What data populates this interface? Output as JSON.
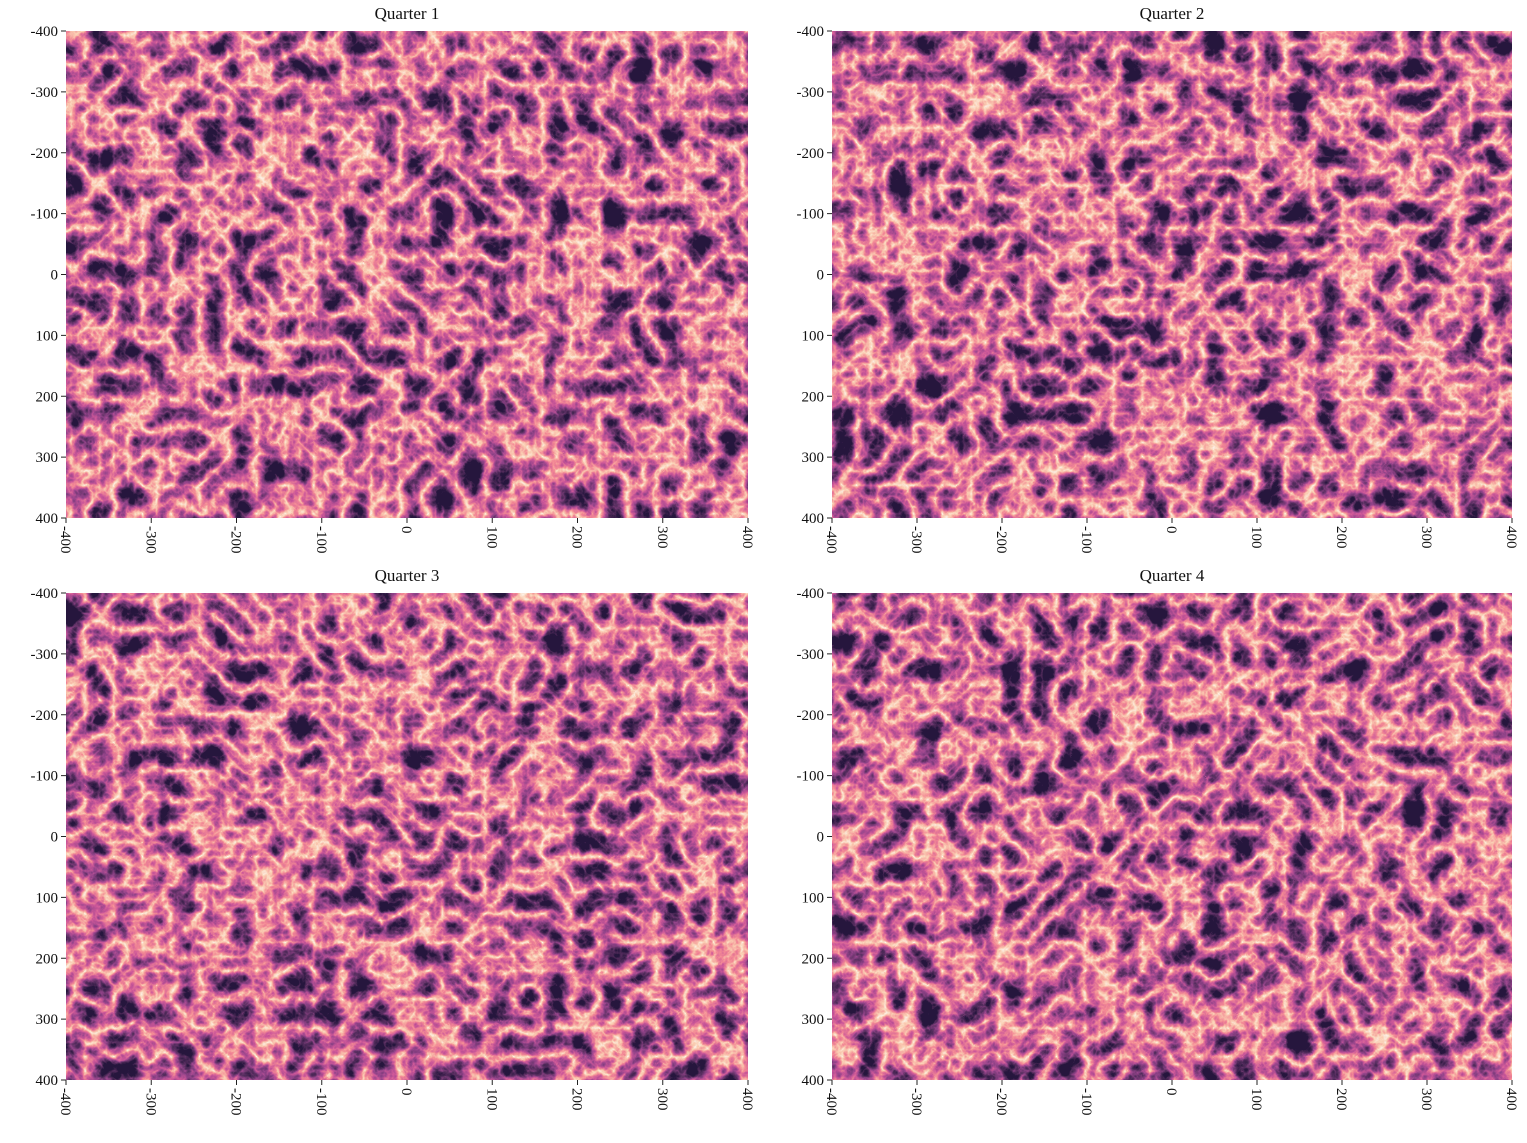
{
  "chart_data": [
    {
      "type": "heatmap",
      "title": "Quarter 1",
      "colormap": "rocket",
      "seed": 3,
      "xlim": [
        -400,
        400
      ],
      "xticks": [
        -400,
        -300,
        -200,
        -100,
        0,
        100,
        200,
        300,
        400
      ],
      "ylim": [
        -400,
        400
      ],
      "yticks": [
        -400,
        -300,
        -200,
        -100,
        0,
        100,
        200,
        300,
        400
      ],
      "y_inverted": true
    },
    {
      "type": "heatmap",
      "title": "Quarter 2",
      "colormap": "rocket",
      "seed": 11,
      "xlim": [
        -400,
        400
      ],
      "xticks": [
        -400,
        -300,
        -200,
        -100,
        0,
        100,
        200,
        300,
        400
      ],
      "ylim": [
        -400,
        400
      ],
      "yticks": [
        -400,
        -300,
        -200,
        -100,
        0,
        100,
        200,
        300,
        400
      ],
      "y_inverted": true
    },
    {
      "type": "heatmap",
      "title": "Quarter 3",
      "colormap": "rocket",
      "seed": 27,
      "xlim": [
        -400,
        400
      ],
      "xticks": [
        -400,
        -300,
        -200,
        -100,
        0,
        100,
        200,
        300,
        400
      ],
      "ylim": [
        -400,
        400
      ],
      "yticks": [
        -400,
        -300,
        -200,
        -100,
        0,
        100,
        200,
        300,
        400
      ],
      "y_inverted": true
    },
    {
      "type": "heatmap",
      "title": "Quarter 4",
      "colormap": "rocket",
      "seed": 42,
      "xlim": [
        -400,
        400
      ],
      "xticks": [
        -400,
        -300,
        -200,
        -100,
        0,
        100,
        200,
        300,
        400
      ],
      "ylim": [
        -400,
        400
      ],
      "yticks": [
        -400,
        -300,
        -200,
        -100,
        0,
        100,
        200,
        300,
        400
      ],
      "y_inverted": true
    }
  ]
}
